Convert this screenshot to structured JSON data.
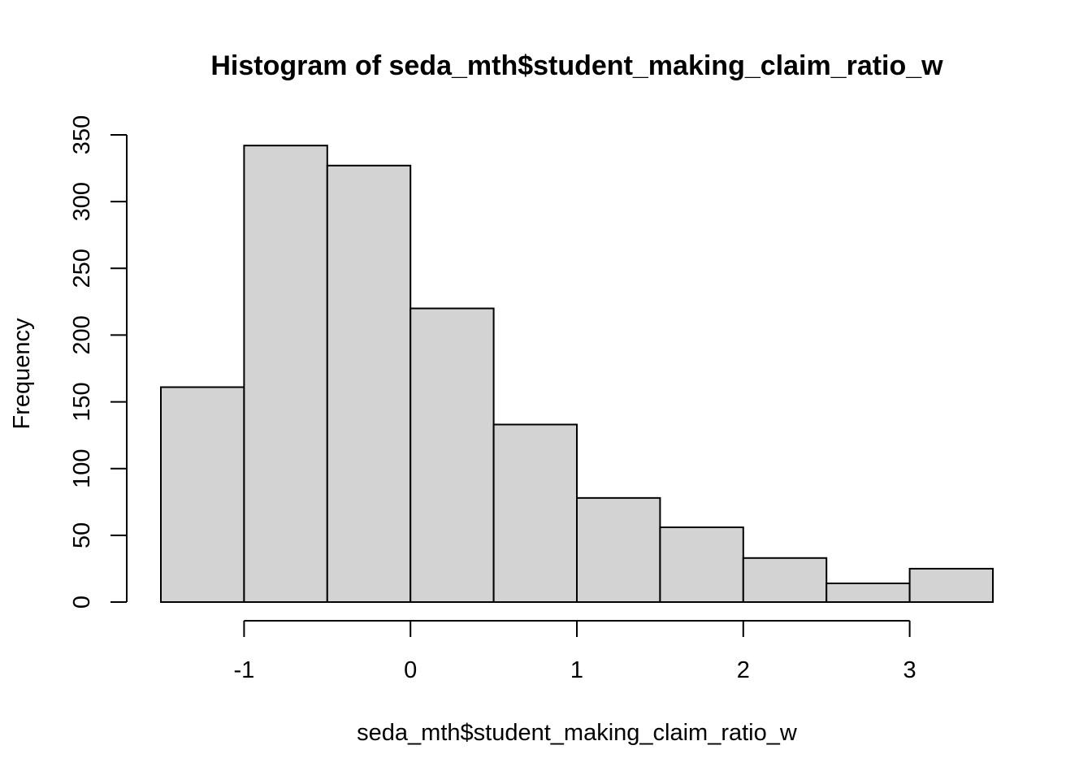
{
  "chart_data": {
    "type": "bar",
    "title": "Histogram of seda_mth$student_making_claim_ratio_w",
    "xlabel": "seda_mth$student_making_claim_ratio_w",
    "ylabel": "Frequency",
    "bins": [
      {
        "x0": -1.5,
        "x1": -1.0,
        "count": 161
      },
      {
        "x0": -1.0,
        "x1": -0.5,
        "count": 342
      },
      {
        "x0": -0.5,
        "x1": 0.0,
        "count": 327
      },
      {
        "x0": 0.0,
        "x1": 0.5,
        "count": 220
      },
      {
        "x0": 0.5,
        "x1": 1.0,
        "count": 133
      },
      {
        "x0": 1.0,
        "x1": 1.5,
        "count": 78
      },
      {
        "x0": 1.5,
        "x1": 2.0,
        "count": 56
      },
      {
        "x0": 2.0,
        "x1": 2.5,
        "count": 33
      },
      {
        "x0": 2.5,
        "x1": 3.0,
        "count": 14
      },
      {
        "x0": 3.0,
        "x1": 3.5,
        "count": 25
      }
    ],
    "xlim": [
      -1.5,
      3.5
    ],
    "ylim": [
      0,
      350
    ],
    "xticks": [
      -1,
      0,
      1,
      2,
      3
    ],
    "xtick_labels": [
      "-1",
      "0",
      "1",
      "2",
      "3"
    ],
    "yticks": [
      0,
      50,
      100,
      150,
      200,
      250,
      300,
      350
    ],
    "ytick_labels": [
      "0",
      "50",
      "100",
      "150",
      "200",
      "250",
      "300",
      "350"
    ],
    "grid": false,
    "bar_color": "#d3d3d3",
    "edge_color": "#000000"
  }
}
